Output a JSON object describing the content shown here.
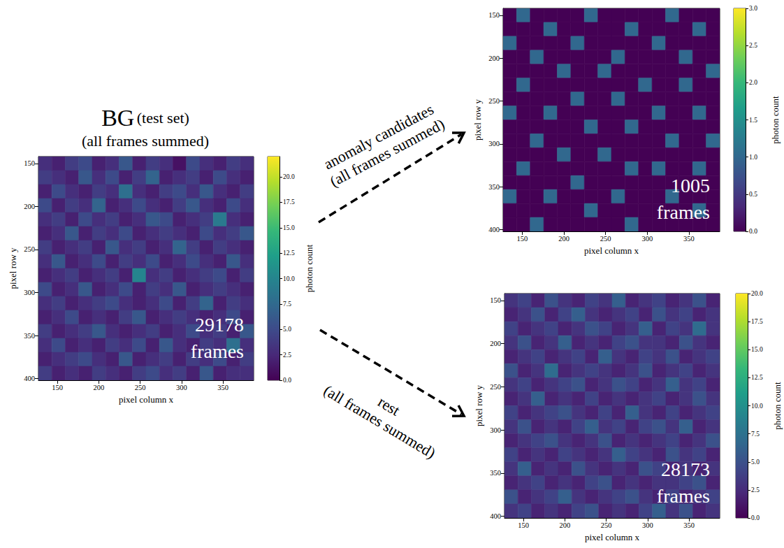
{
  "chart_data": [
    {
      "type": "heatmap",
      "title": "BG (test set)",
      "subtitle": "(all frames summed)",
      "annotations": [
        "29178 frames"
      ],
      "xlabel": "pixel column x",
      "ylabel": "pixel row y",
      "xlim": [
        127,
        387
      ],
      "ylim": [
        142,
        402
      ],
      "xticks": [
        150,
        200,
        250,
        300,
        350
      ],
      "yticks": [
        150,
        200,
        250,
        300,
        350,
        400
      ],
      "cells": [
        [
          3,
          2,
          4,
          5,
          2,
          3,
          6,
          2,
          4,
          3,
          1,
          5,
          3,
          2,
          4,
          3
        ],
        [
          4,
          3,
          2,
          6,
          3,
          5,
          2,
          4,
          7,
          2,
          3,
          4,
          2,
          5,
          3,
          2
        ],
        [
          2,
          5,
          3,
          2,
          4,
          3,
          8,
          3,
          2,
          4,
          5,
          3,
          6,
          3,
          2,
          4
        ],
        [
          5,
          2,
          4,
          3,
          7,
          2,
          3,
          5,
          3,
          2,
          4,
          6,
          3,
          2,
          5,
          3
        ],
        [
          3,
          4,
          2,
          5,
          3,
          4,
          2,
          3,
          6,
          5,
          2,
          3,
          4,
          9,
          3,
          2
        ],
        [
          2,
          3,
          6,
          2,
          4,
          3,
          5,
          2,
          3,
          4,
          3,
          2,
          5,
          3,
          4,
          6
        ],
        [
          4,
          2,
          3,
          4,
          2,
          6,
          3,
          4,
          2,
          3,
          7,
          4,
          2,
          4,
          3,
          2
        ],
        [
          3,
          6,
          2,
          3,
          5,
          2,
          4,
          3,
          5,
          2,
          3,
          5,
          3,
          2,
          6,
          3
        ],
        [
          2,
          3,
          4,
          2,
          3,
          4,
          2,
          10,
          3,
          4,
          2,
          3,
          4,
          5,
          2,
          4
        ],
        [
          5,
          2,
          3,
          6,
          2,
          3,
          5,
          2,
          4,
          3,
          6,
          2,
          3,
          4,
          3,
          2
        ],
        [
          3,
          4,
          2,
          3,
          4,
          5,
          3,
          2,
          3,
          5,
          2,
          4,
          7,
          2,
          4,
          3
        ],
        [
          2,
          3,
          5,
          2,
          3,
          2,
          4,
          6,
          2,
          3,
          4,
          3,
          2,
          3,
          5,
          2
        ],
        [
          4,
          2,
          3,
          4,
          6,
          3,
          2,
          3,
          4,
          2,
          3,
          5,
          3,
          4,
          2,
          6
        ],
        [
          3,
          5,
          2,
          3,
          2,
          4,
          3,
          5,
          2,
          6,
          3,
          2,
          4,
          3,
          8,
          3
        ],
        [
          2,
          3,
          4,
          5,
          3,
          2,
          6,
          2,
          3,
          4,
          2,
          4,
          3,
          5,
          2,
          4
        ],
        [
          4,
          2,
          3,
          2,
          4,
          3,
          2,
          4,
          5,
          3,
          4,
          2,
          6,
          2,
          3,
          3
        ]
      ],
      "colorbar": {
        "range": [
          0,
          22
        ],
        "label": "photon count",
        "ticks": [
          {
            "value": 0,
            "label": "0.0"
          },
          2.5,
          {
            "value": 5,
            "label": "5.0"
          },
          7.5,
          {
            "value": 10,
            "label": "10.0"
          },
          12.5,
          {
            "value": 15,
            "label": "15.0"
          },
          17.5,
          {
            "value": 20,
            "label": "20.0"
          }
        ]
      }
    },
    {
      "type": "heatmap",
      "title": "anomaly candidates",
      "subtitle": "(all frames summed)",
      "annotations": [
        "1005 frames"
      ],
      "xlabel": "pixel column x",
      "ylabel": "pixel row y",
      "xlim": [
        127,
        387
      ],
      "ylim": [
        142,
        402
      ],
      "xticks": [
        150,
        200,
        250,
        300,
        350
      ],
      "yticks": [
        150,
        200,
        250,
        300,
        350,
        400
      ],
      "cells": [
        [
          0,
          1,
          0,
          0,
          0,
          0,
          1,
          0,
          0,
          0,
          0,
          0,
          1,
          0,
          0,
          0
        ],
        [
          0,
          0,
          0,
          1,
          0,
          0,
          0,
          0,
          0,
          1,
          0,
          0,
          0,
          0,
          1,
          0
        ],
        [
          1,
          0,
          0,
          0,
          0,
          1,
          0,
          0,
          0,
          0,
          0,
          1,
          0,
          0,
          0,
          0
        ],
        [
          0,
          0,
          1,
          0,
          0,
          0,
          0,
          0,
          1,
          0,
          0,
          0,
          0,
          1,
          0,
          0
        ],
        [
          0,
          0,
          0,
          0,
          1,
          0,
          0,
          1,
          0,
          0,
          0,
          0,
          0,
          0,
          0,
          1
        ],
        [
          0,
          1,
          0,
          0,
          0,
          0,
          0,
          0,
          0,
          0,
          1,
          0,
          0,
          1,
          0,
          0
        ],
        [
          0,
          0,
          0,
          0,
          0,
          1,
          0,
          0,
          1,
          0,
          0,
          0,
          0,
          0,
          0,
          0
        ],
        [
          1,
          0,
          0,
          1,
          0,
          0,
          0,
          0,
          0,
          0,
          0,
          1,
          0,
          0,
          1,
          0
        ],
        [
          0,
          0,
          0,
          0,
          0,
          0,
          1,
          0,
          0,
          1,
          0,
          0,
          0,
          0,
          0,
          0
        ],
        [
          0,
          0,
          1,
          0,
          0,
          0,
          0,
          0,
          0,
          0,
          0,
          0,
          1,
          0,
          0,
          1
        ],
        [
          0,
          0,
          0,
          0,
          1,
          0,
          0,
          1,
          0,
          0,
          0,
          0,
          0,
          0,
          0,
          0
        ],
        [
          0,
          1,
          0,
          0,
          0,
          0,
          0,
          0,
          0,
          1,
          0,
          1,
          0,
          0,
          1,
          0
        ],
        [
          0,
          0,
          0,
          0,
          0,
          1,
          0,
          0,
          0,
          0,
          0,
          0,
          0,
          0,
          0,
          0
        ],
        [
          1,
          0,
          0,
          1,
          0,
          0,
          0,
          0,
          1,
          0,
          0,
          0,
          1,
          0,
          0,
          0
        ],
        [
          0,
          0,
          0,
          0,
          0,
          0,
          1,
          0,
          0,
          0,
          0,
          0,
          0,
          0,
          1,
          0
        ],
        [
          0,
          0,
          1,
          0,
          0,
          0,
          0,
          0,
          0,
          1,
          0,
          0,
          0,
          0,
          0,
          0
        ]
      ],
      "colorbar": {
        "range": [
          0,
          3
        ],
        "label": "photon count",
        "ticks": [
          {
            "value": 0,
            "label": "0.0"
          },
          0.5,
          {
            "value": 1,
            "label": "1.0"
          },
          1.5,
          {
            "value": 2,
            "label": "2.0"
          },
          2.5,
          {
            "value": 3,
            "label": "3.0"
          }
        ]
      }
    },
    {
      "type": "heatmap",
      "title": "rest",
      "subtitle": "(all frames summed)",
      "annotations": [
        "28173 frames"
      ],
      "xlabel": "pixel column x",
      "ylabel": "pixel row y",
      "xlim": [
        127,
        387
      ],
      "ylim": [
        142,
        402
      ],
      "xticks": [
        150,
        200,
        250,
        300,
        350
      ],
      "yticks": [
        150,
        200,
        250,
        300,
        350,
        400
      ],
      "cells": [
        [
          3,
          4,
          2,
          5,
          3,
          2,
          4,
          3,
          6,
          2,
          3,
          4,
          2,
          3,
          5,
          2
        ],
        [
          2,
          3,
          5,
          2,
          4,
          6,
          3,
          2,
          3,
          4,
          2,
          5,
          3,
          4,
          2,
          3
        ],
        [
          4,
          2,
          3,
          4,
          2,
          3,
          5,
          4,
          2,
          3,
          6,
          2,
          4,
          3,
          7,
          3
        ],
        [
          3,
          5,
          2,
          3,
          6,
          2,
          3,
          2,
          4,
          5,
          3,
          3,
          2,
          5,
          3,
          2
        ],
        [
          2,
          3,
          4,
          2,
          3,
          4,
          2,
          6,
          3,
          2,
          4,
          3,
          5,
          2,
          3,
          4
        ],
        [
          5,
          2,
          3,
          7,
          2,
          3,
          4,
          3,
          2,
          3,
          5,
          2,
          3,
          4,
          2,
          3
        ],
        [
          3,
          4,
          2,
          3,
          4,
          5,
          2,
          3,
          5,
          4,
          2,
          3,
          6,
          3,
          4,
          2
        ],
        [
          2,
          3,
          6,
          2,
          3,
          2,
          4,
          2,
          3,
          2,
          3,
          4,
          2,
          3,
          5,
          3
        ],
        [
          4,
          2,
          3,
          4,
          5,
          3,
          2,
          4,
          2,
          6,
          3,
          2,
          4,
          2,
          3,
          4
        ],
        [
          3,
          5,
          2,
          3,
          2,
          4,
          6,
          3,
          4,
          2,
          4,
          5,
          3,
          6,
          2,
          3
        ],
        [
          2,
          3,
          4,
          5,
          3,
          2,
          3,
          5,
          2,
          3,
          2,
          3,
          4,
          2,
          3,
          5
        ],
        [
          4,
          2,
          3,
          2,
          4,
          3,
          2,
          3,
          6,
          4,
          3,
          2,
          5,
          3,
          4,
          2
        ],
        [
          3,
          6,
          2,
          3,
          2,
          5,
          3,
          2,
          3,
          2,
          5,
          4,
          2,
          3,
          2,
          3
        ],
        [
          2,
          3,
          4,
          2,
          3,
          2,
          4,
          5,
          2,
          3,
          2,
          3,
          3,
          4,
          5,
          2
        ],
        [
          5,
          2,
          3,
          4,
          6,
          3,
          2,
          3,
          4,
          5,
          3,
          2,
          4,
          2,
          3,
          4
        ],
        [
          3,
          4,
          2,
          3,
          2,
          4,
          5,
          2,
          3,
          2,
          4,
          6,
          3,
          5,
          2,
          3
        ]
      ],
      "colorbar": {
        "range": [
          0,
          20
        ],
        "label": "photon count",
        "ticks": [
          {
            "value": 0,
            "label": "0.0"
          },
          2.5,
          {
            "value": 5,
            "label": "5.0"
          },
          7.5,
          {
            "value": 10,
            "label": "10.0"
          },
          12.5,
          {
            "value": 15,
            "label": "15.0"
          },
          17.5,
          {
            "value": 20,
            "label": "20.0"
          }
        ]
      }
    }
  ]
}
